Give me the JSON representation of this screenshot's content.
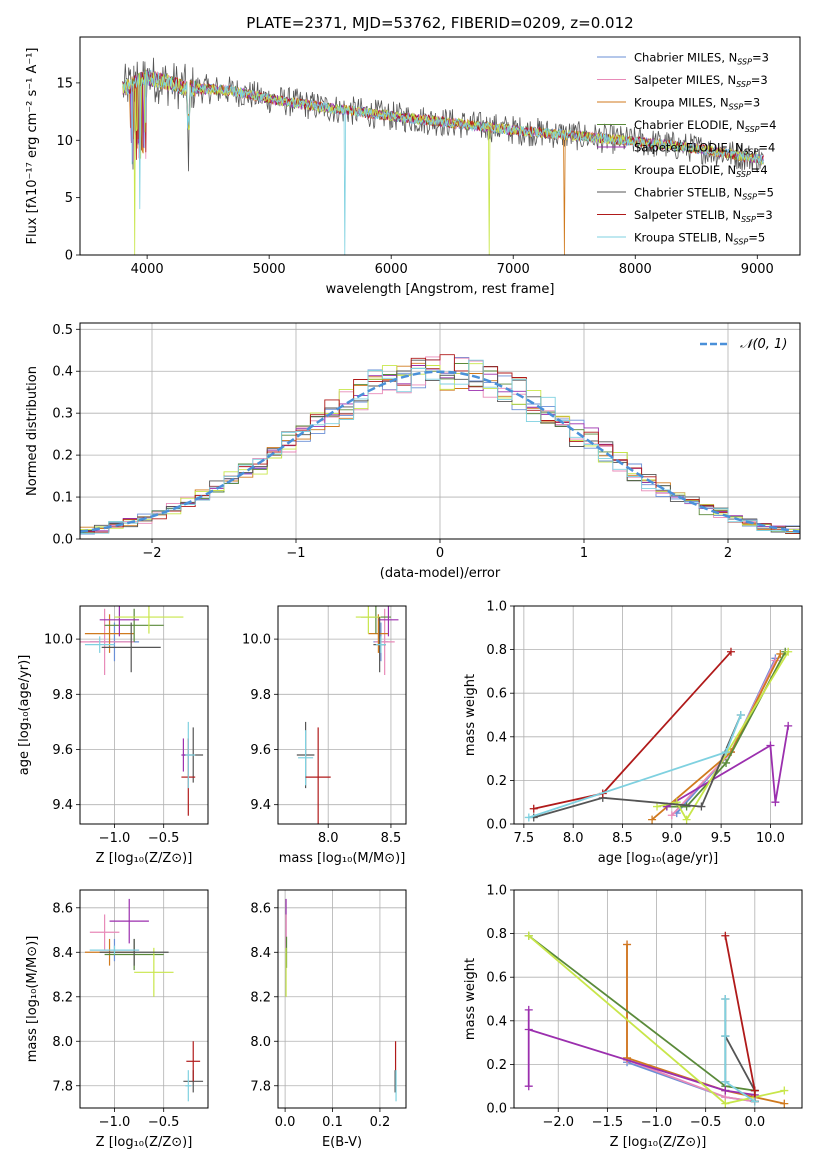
{
  "title": "PLATE=2371, MJD=53762, FIBERID=0209, z=0.012",
  "colors": {
    "Chabrier MILES": "#6a8fd6",
    "Salpeter MILES": "#e88ab8",
    "Kroupa MILES": "#d07a1e",
    "Chabrier ELODIE": "#5a8a3a",
    "Salpeter ELODIE": "#9b2fae",
    "Kroupa ELODIE": "#c8e64a",
    "Chabrier STELIB": "#555555",
    "Salpeter STELIB": "#b01a1a",
    "Kroupa STELIB": "#7fd1e0",
    "grid": "#b0b0b0",
    "normal_curve": "#4a90d9"
  },
  "chart_data": [
    {
      "id": "spectrum",
      "type": "line",
      "xlabel": "wavelength [Angstrom, rest frame]",
      "ylabel": "Flux [fλ10⁻¹⁷ erg cm⁻² s⁻¹ A⁻¹]",
      "xlim": [
        3450,
        9350
      ],
      "ylim": [
        0,
        19
      ],
      "xticks": [
        4000,
        5000,
        6000,
        7000,
        8000,
        9000
      ],
      "yticks": [
        0,
        5,
        10,
        15
      ],
      "grid": false,
      "legend_position": "top-right",
      "series": [
        {
          "name": "Chabrier MILES",
          "nssp": "3"
        },
        {
          "name": "Salpeter MILES",
          "nssp": "3"
        },
        {
          "name": "Kroupa MILES",
          "nssp": "3"
        },
        {
          "name": "Chabrier ELODIE",
          "nssp": "4"
        },
        {
          "name": "Salpeter ELODIE",
          "nssp": "4"
        },
        {
          "name": "Kroupa ELODIE",
          "nssp": "4"
        },
        {
          "name": "Chabrier STELIB",
          "nssp": "5"
        },
        {
          "name": "Salpeter STELIB",
          "nssp": "3"
        },
        {
          "name": "Kroupa STELIB",
          "nssp": "5"
        }
      ],
      "continuum": [
        [
          3800,
          14.5
        ],
        [
          4000,
          15.5
        ],
        [
          4300,
          14.6
        ],
        [
          4700,
          14.3
        ],
        [
          5000,
          13.6
        ],
        [
          5500,
          12.8
        ],
        [
          6000,
          12.1
        ],
        [
          6500,
          11.5
        ],
        [
          7000,
          10.9
        ],
        [
          7500,
          10.4
        ],
        [
          8000,
          9.9
        ],
        [
          8500,
          9.3
        ],
        [
          9050,
          8.3
        ]
      ],
      "dips": [
        {
          "series": "Kroupa ELODIE",
          "x": 3900,
          "y": 0
        },
        {
          "series": "Kroupa STELIB",
          "x": 5620,
          "y": 0
        },
        {
          "series": "Kroupa ELODIE",
          "x": 6800,
          "y": 0
        },
        {
          "series": "Kroupa MILES",
          "x": 7420,
          "y": 0
        },
        {
          "series": "Kroupa STELIB",
          "x": 3940,
          "y": 4.0
        },
        {
          "series": "Chabrier STELIB",
          "x": 4340,
          "y": 7.3
        }
      ]
    },
    {
      "id": "residuals",
      "type": "histogram",
      "xlabel": "(data-model)/error",
      "ylabel": "Normed distribution",
      "xlim": [
        -2.5,
        2.5
      ],
      "ylim": [
        0,
        0.515
      ],
      "xticks": [
        -2,
        -1,
        0,
        1,
        2
      ],
      "yticks": [
        0.0,
        0.1,
        0.2,
        0.3,
        0.4,
        0.5
      ],
      "grid": true,
      "legend_position": "top-right",
      "legend_label": "𝒩(0, 1)",
      "bins": 50
    },
    {
      "id": "age_vs_Z",
      "type": "errorbar",
      "xlabel": "Z [log₁₀(Z/Z⊙)]",
      "ylabel": "age  [log₁₀(age/yr)]",
      "xlim": [
        -1.35,
        -0.05
      ],
      "ylim": [
        9.33,
        10.12
      ],
      "xticks": [
        -1.0,
        -0.5
      ],
      "yticks": [
        9.4,
        9.6,
        9.8,
        10.0
      ],
      "grid": true,
      "points": [
        {
          "series": "Chabrier MILES",
          "x": -1.0,
          "xerr": 0.25,
          "y": 9.99,
          "yerr": 0.07
        },
        {
          "series": "Salpeter MILES",
          "x": -1.1,
          "xerr": 0.3,
          "y": 9.99,
          "yerr": 0.12
        },
        {
          "series": "Kroupa MILES",
          "x": -1.05,
          "xerr": 0.25,
          "y": 10.02,
          "yerr": 0.07
        },
        {
          "series": "Chabrier ELODIE",
          "x": -0.8,
          "xerr": 0.3,
          "y": 10.05,
          "yerr": 0.06
        },
        {
          "series": "Salpeter ELODIE",
          "x": -0.95,
          "xerr": 0.2,
          "y": 10.07,
          "yerr": 0.06
        },
        {
          "series": "Kroupa ELODIE",
          "x": -0.65,
          "xerr": 0.35,
          "y": 10.08,
          "yerr": 0.06
        },
        {
          "series": "Chabrier STELIB",
          "x": -0.83,
          "xerr": 0.3,
          "y": 9.97,
          "yerr": 0.09
        },
        {
          "series": "Kroupa STELIB",
          "x": -1.15,
          "xerr": 0.15,
          "y": 9.98,
          "yerr": 0.03
        },
        {
          "series": "Chabrier STELIB",
          "x": -0.2,
          "xerr": 0.1,
          "y": 9.58,
          "yerr": 0.1
        },
        {
          "series": "Salpeter STELIB",
          "x": -0.25,
          "xerr": 0.07,
          "y": 9.5,
          "yerr": 0.14
        },
        {
          "series": "Kroupa STELIB",
          "x": -0.25,
          "xerr": 0.07,
          "y": 9.58,
          "yerr": 0.12
        },
        {
          "series": "Salpeter ELODIE",
          "x": -0.3,
          "xerr": 0.02,
          "y": 9.58,
          "yerr": 0.06
        }
      ]
    },
    {
      "id": "age_vs_mass",
      "type": "errorbar",
      "xlabel": "mass [log₁₀(M/M⊙)]",
      "ylabel": "",
      "xlim": [
        7.6,
        8.62
      ],
      "ylim": [
        9.33,
        10.12
      ],
      "xticks": [
        8.0,
        8.5
      ],
      "yticks": [
        9.4,
        9.6,
        9.8,
        10.0
      ],
      "grid": true,
      "points": [
        {
          "series": "Chabrier MILES",
          "x": 8.42,
          "xerr": 0.06,
          "y": 9.99,
          "yerr": 0.07
        },
        {
          "series": "Salpeter MILES",
          "x": 8.45,
          "xerr": 0.08,
          "y": 9.99,
          "yerr": 0.12
        },
        {
          "series": "Kroupa MILES",
          "x": 8.4,
          "xerr": 0.08,
          "y": 10.02,
          "yerr": 0.07
        },
        {
          "series": "Chabrier ELODIE",
          "x": 8.38,
          "xerr": 0.12,
          "y": 10.08,
          "yerr": 0.06
        },
        {
          "series": "Salpeter ELODIE",
          "x": 8.48,
          "xerr": 0.08,
          "y": 10.07,
          "yerr": 0.06
        },
        {
          "series": "Kroupa ELODIE",
          "x": 8.32,
          "xerr": 0.1,
          "y": 10.08,
          "yerr": 0.06
        },
        {
          "series": "Chabrier STELIB",
          "x": 8.41,
          "xerr": 0.05,
          "y": 9.98,
          "yerr": 0.1
        },
        {
          "series": "Kroupa STELIB",
          "x": 8.42,
          "xerr": 0.04,
          "y": 9.98,
          "yerr": 0.03
        },
        {
          "series": "Chabrier STELIB",
          "x": 7.82,
          "xerr": 0.07,
          "y": 9.58,
          "yerr": 0.12
        },
        {
          "series": "Kroupa STELIB",
          "x": 7.82,
          "xerr": 0.06,
          "y": 9.57,
          "yerr": 0.1
        },
        {
          "series": "Salpeter STELIB",
          "x": 7.92,
          "xerr": 0.1,
          "y": 9.5,
          "yerr": 0.18
        }
      ]
    },
    {
      "id": "weight_vs_age",
      "type": "line",
      "xlabel": "age  [log₁₀(age/yr)]",
      "ylabel": "mass weight",
      "xlim": [
        7.4,
        10.32
      ],
      "ylim": [
        0,
        1.0
      ],
      "xticks": [
        7.5,
        8.0,
        8.5,
        9.0,
        9.5,
        10.0
      ],
      "yticks": [
        0.0,
        0.2,
        0.4,
        0.6,
        0.8,
        1.0
      ],
      "grid": true,
      "series": [
        {
          "name": "Chabrier MILES",
          "x": [
            9.05,
            9.6,
            10.05
          ],
          "y": [
            0.05,
            0.33,
            0.76
          ]
        },
        {
          "name": "Salpeter MILES",
          "x": [
            9.0,
            9.6,
            10.05
          ],
          "y": [
            0.04,
            0.33,
            0.75
          ]
        },
        {
          "name": "Kroupa MILES",
          "x": [
            8.8,
            9.6,
            10.1
          ],
          "y": [
            0.02,
            0.33,
            0.78
          ]
        },
        {
          "name": "Chabrier ELODIE",
          "x": [
            8.95,
            9.15,
            9.55,
            10.15
          ],
          "y": [
            0.08,
            0.08,
            0.28,
            0.79
          ]
        },
        {
          "name": "Salpeter ELODIE",
          "x": [
            8.95,
            10.0,
            10.05,
            10.18
          ],
          "y": [
            0.08,
            0.36,
            0.1,
            0.45
          ]
        },
        {
          "name": "Kroupa ELODIE",
          "x": [
            8.85,
            9.05,
            9.15,
            10.18
          ],
          "y": [
            0.08,
            0.1,
            0.02,
            0.79
          ]
        },
        {
          "name": "Chabrier STELIB",
          "x": [
            7.6,
            8.3,
            9.3,
            9.7
          ],
          "y": [
            0.03,
            0.12,
            0.08,
            0.5
          ]
        },
        {
          "name": "Salpeter STELIB",
          "x": [
            7.6,
            8.3,
            9.6
          ],
          "y": [
            0.07,
            0.14,
            0.79
          ]
        },
        {
          "name": "Kroupa STELIB",
          "x": [
            7.55,
            9.55,
            9.7
          ],
          "y": [
            0.03,
            0.33,
            0.5
          ]
        }
      ]
    },
    {
      "id": "mass_vs_Z",
      "type": "errorbar",
      "xlabel": "Z [log₁₀(Z/Z⊙)]",
      "ylabel": "mass [log₁₀(M/M⊙)]",
      "xlim": [
        -1.35,
        -0.05
      ],
      "ylim": [
        7.7,
        8.68
      ],
      "xticks": [
        -1.0,
        -0.5
      ],
      "yticks": [
        7.8,
        8.0,
        8.2,
        8.4,
        8.6
      ],
      "grid": true,
      "points": [
        {
          "series": "Chabrier MILES",
          "x": -1.0,
          "xerr": 0.25,
          "y": 8.41,
          "yerr": 0.05
        },
        {
          "series": "Salpeter MILES",
          "x": -1.1,
          "xerr": 0.15,
          "y": 8.49,
          "yerr": 0.08
        },
        {
          "series": "Kroupa MILES",
          "x": -1.05,
          "xerr": 0.25,
          "y": 8.4,
          "yerr": 0.06
        },
        {
          "series": "Chabrier ELODIE",
          "x": -0.8,
          "xerr": 0.3,
          "y": 8.39,
          "yerr": 0.07
        },
        {
          "series": "Salpeter ELODIE",
          "x": -0.85,
          "xerr": 0.2,
          "y": 8.54,
          "yerr": 0.1
        },
        {
          "series": "Kroupa ELODIE",
          "x": -0.6,
          "xerr": 0.2,
          "y": 8.31,
          "yerr": 0.11
        },
        {
          "series": "Chabrier STELIB",
          "x": -0.8,
          "xerr": 0.35,
          "y": 8.4,
          "yerr": 0.06
        },
        {
          "series": "Kroupa STELIB",
          "x": -1.0,
          "xerr": 0.25,
          "y": 8.41,
          "yerr": 0.02
        },
        {
          "series": "Chabrier STELIB",
          "x": -0.2,
          "xerr": 0.1,
          "y": 7.82,
          "yerr": 0.05
        },
        {
          "series": "Salpeter STELIB",
          "x": -0.2,
          "xerr": 0.07,
          "y": 7.91,
          "yerr": 0.09
        },
        {
          "series": "Kroupa STELIB",
          "x": -0.25,
          "xerr": 0.03,
          "y": 7.8,
          "yerr": 0.07
        }
      ]
    },
    {
      "id": "mass_vs_ebv",
      "type": "errorbar",
      "xlabel": "E(B-V)",
      "ylabel": "",
      "xlim": [
        -0.015,
        0.255
      ],
      "ylim": [
        7.7,
        8.68
      ],
      "xticks": [
        0.0,
        0.1,
        0.2
      ],
      "yticks": [
        7.8,
        8.0,
        8.2,
        8.4,
        8.6
      ],
      "grid": true,
      "points": [
        {
          "series": "Salpeter ELODIE",
          "x": 0.002,
          "xerr": 0.0,
          "y": 8.54,
          "yerr": 0.1
        },
        {
          "series": "Salpeter MILES",
          "x": 0.002,
          "xerr": 0.0,
          "y": 8.49,
          "yerr": 0.08
        },
        {
          "series": "Chabrier ELODIE",
          "x": 0.003,
          "xerr": 0.0,
          "y": 8.4,
          "yerr": 0.07
        },
        {
          "series": "Kroupa ELODIE",
          "x": 0.002,
          "xerr": 0.0,
          "y": 8.31,
          "yerr": 0.11
        },
        {
          "series": "Salpeter STELIB",
          "x": 0.233,
          "xerr": 0.0,
          "y": 7.91,
          "yerr": 0.09
        },
        {
          "series": "Chabrier STELIB",
          "x": 0.232,
          "xerr": 0.0,
          "y": 7.82,
          "yerr": 0.05
        },
        {
          "series": "Kroupa STELIB",
          "x": 0.234,
          "xerr": 0.0,
          "y": 7.8,
          "yerr": 0.07
        }
      ]
    },
    {
      "id": "weight_vs_Z",
      "type": "line",
      "xlabel": "Z [log₁₀(Z/Z⊙)]",
      "ylabel": "mass weight",
      "xlim": [
        -2.45,
        0.48
      ],
      "ylim": [
        0,
        1.0
      ],
      "xticks": [
        -2.0,
        -1.5,
        -1.0,
        -0.5,
        0.0
      ],
      "yticks": [
        0.0,
        0.2,
        0.4,
        0.6,
        0.8,
        1.0
      ],
      "grid": true,
      "series": [
        {
          "name": "Chabrier MILES",
          "x": [
            -1.3,
            -0.3,
            0.0
          ],
          "y": [
            0.21,
            0.05,
            0.03
          ]
        },
        {
          "name": "Salpeter MILES",
          "x": [
            -1.3,
            -1.3,
            -0.3,
            0.0
          ],
          "y": [
            0.75,
            0.22,
            0.05,
            0.03
          ]
        },
        {
          "name": "Kroupa MILES",
          "x": [
            -1.3,
            -1.3,
            -0.3,
            0.0,
            0.3
          ],
          "y": [
            0.75,
            0.23,
            0.08,
            0.05,
            0.02
          ]
        },
        {
          "name": "Chabrier ELODIE",
          "x": [
            -2.3,
            -0.3,
            0.0,
            0.0
          ],
          "y": [
            0.79,
            0.1,
            0.08,
            0.03
          ]
        },
        {
          "name": "Salpeter ELODIE",
          "x": [
            -2.3,
            -2.3,
            -2.3,
            -0.3,
            0.0
          ],
          "y": [
            0.45,
            0.1,
            0.36,
            0.08,
            0.06
          ]
        },
        {
          "name": "Kroupa ELODIE",
          "x": [
            -2.3,
            -0.3,
            0.3
          ],
          "y": [
            0.79,
            0.02,
            0.08
          ]
        },
        {
          "name": "Chabrier STELIB",
          "x": [
            -0.3,
            -0.3,
            -0.3,
            0.0
          ],
          "y": [
            0.5,
            0.12,
            0.33,
            0.08
          ]
        },
        {
          "name": "Salpeter STELIB",
          "x": [
            -0.3,
            0.0,
            0.0
          ],
          "y": [
            0.79,
            0.08,
            0.03
          ]
        },
        {
          "name": "Kroupa STELIB",
          "x": [
            -0.3,
            -0.3,
            -0.3,
            0.0
          ],
          "y": [
            0.5,
            0.33,
            0.12,
            0.03
          ]
        }
      ]
    }
  ]
}
